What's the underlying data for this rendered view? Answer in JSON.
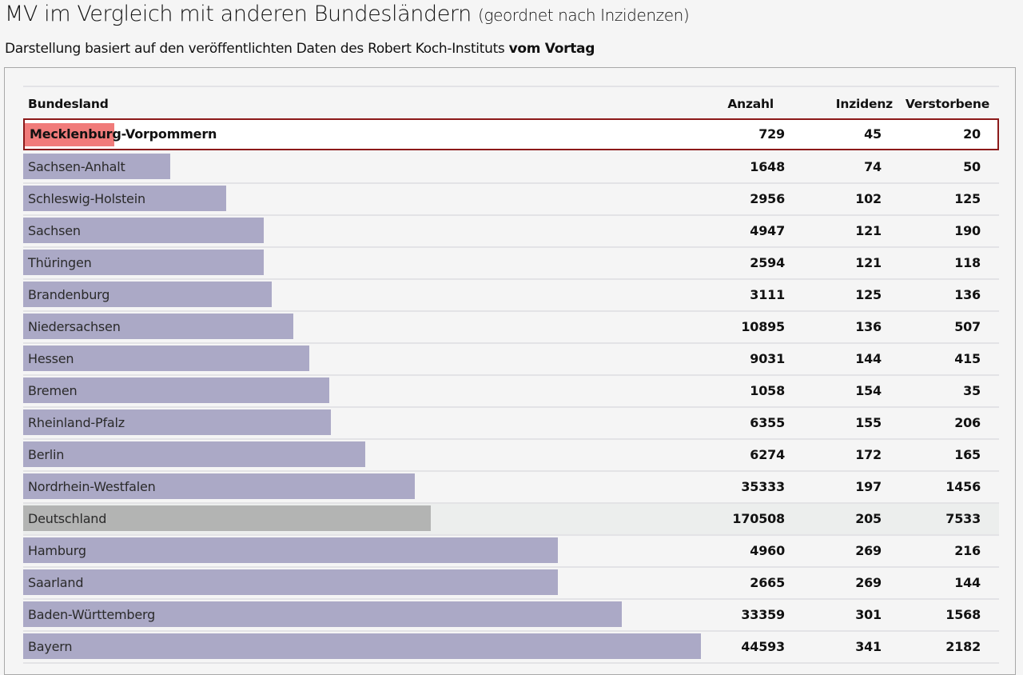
{
  "page": {
    "title": "MV im Vergleich mit anderen Bundesländern",
    "title_suffix": "(geordnet nach Inzidenzen)",
    "subtitle_prefix": "Darstellung basiert auf den veröffentlichten Daten des Robert Koch-Instituts",
    "subtitle_bold": "vom Vortag"
  },
  "colors": {
    "bar_default": "#aba9c6",
    "bar_highlight": "#f07b7a",
    "bar_national": "#b3b4b3",
    "highlight_border": "#8c1a1a"
  },
  "chart_data": {
    "type": "table",
    "title": "MV im Vergleich mit anderen Bundesländern (geordnet nach Inzidenzen)",
    "bar_metric": "Inzidenz",
    "columns": [
      "Bundesland",
      "Anzahl",
      "Inzidenz",
      "Verstorbene"
    ],
    "rows": [
      {
        "name": "Mecklenburg-Vorpommern",
        "anzahl": 729,
        "inzidenz": 45,
        "verstorbene": 20,
        "kind": "highlight"
      },
      {
        "name": "Sachsen-Anhalt",
        "anzahl": 1648,
        "inzidenz": 74,
        "verstorbene": 50,
        "kind": "default"
      },
      {
        "name": "Schleswig-Holstein",
        "anzahl": 2956,
        "inzidenz": 102,
        "verstorbene": 125,
        "kind": "default"
      },
      {
        "name": "Sachsen",
        "anzahl": 4947,
        "inzidenz": 121,
        "verstorbene": 190,
        "kind": "default"
      },
      {
        "name": "Thüringen",
        "anzahl": 2594,
        "inzidenz": 121,
        "verstorbene": 118,
        "kind": "default"
      },
      {
        "name": "Brandenburg",
        "anzahl": 3111,
        "inzidenz": 125,
        "verstorbene": 136,
        "kind": "default"
      },
      {
        "name": "Niedersachsen",
        "anzahl": 10895,
        "inzidenz": 136,
        "verstorbene": 507,
        "kind": "default"
      },
      {
        "name": "Hessen",
        "anzahl": 9031,
        "inzidenz": 144,
        "verstorbene": 415,
        "kind": "default"
      },
      {
        "name": "Bremen",
        "anzahl": 1058,
        "inzidenz": 154,
        "verstorbene": 35,
        "kind": "default"
      },
      {
        "name": "Rheinland-Pfalz",
        "anzahl": 6355,
        "inzidenz": 155,
        "verstorbene": 206,
        "kind": "default"
      },
      {
        "name": "Berlin",
        "anzahl": 6274,
        "inzidenz": 172,
        "verstorbene": 165,
        "kind": "default"
      },
      {
        "name": "Nordrhein-Westfalen",
        "anzahl": 35333,
        "inzidenz": 197,
        "verstorbene": 1456,
        "kind": "default"
      },
      {
        "name": "Deutschland",
        "anzahl": 170508,
        "inzidenz": 205,
        "verstorbene": 7533,
        "kind": "national"
      },
      {
        "name": "Hamburg",
        "anzahl": 4960,
        "inzidenz": 269,
        "verstorbene": 216,
        "kind": "default"
      },
      {
        "name": "Saarland",
        "anzahl": 2665,
        "inzidenz": 269,
        "verstorbene": 144,
        "kind": "default"
      },
      {
        "name": "Baden-Württemberg",
        "anzahl": 33359,
        "inzidenz": 301,
        "verstorbene": 1568,
        "kind": "default"
      },
      {
        "name": "Bayern",
        "anzahl": 44593,
        "inzidenz": 341,
        "verstorbene": 2182,
        "kind": "default"
      }
    ]
  }
}
